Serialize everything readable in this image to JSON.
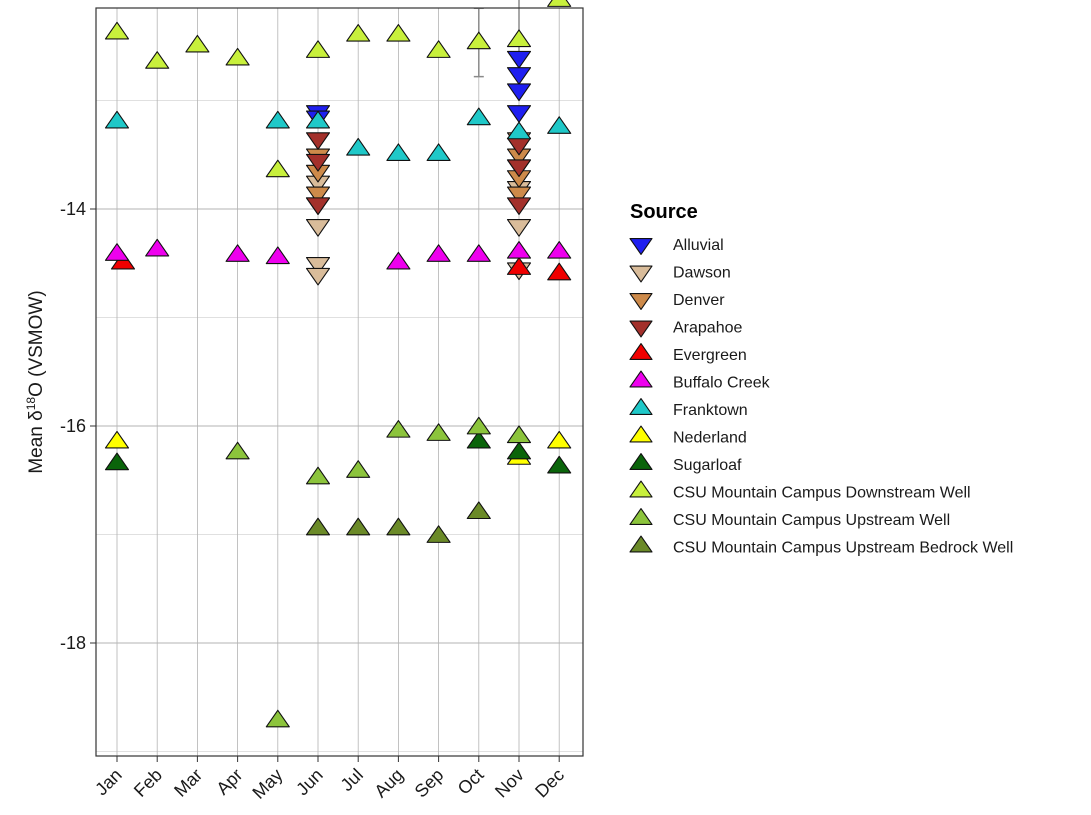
{
  "chart_data": {
    "type": "scatter",
    "title": "",
    "xlabel": "",
    "ylabel": {
      "prefix": "Mean δ",
      "sup": "18",
      "suffix": "O (VSMOW)"
    },
    "categories": [
      "Jan",
      "Feb",
      "Mar",
      "Apr",
      "May",
      "Jun",
      "Jul",
      "Aug",
      "Sep",
      "Oct",
      "Nov",
      "Dec"
    ],
    "ylim": [
      -19.1,
      -11.8
    ],
    "yticks": [
      -18,
      -16,
      -14
    ],
    "grid": true,
    "legend": {
      "title": "Source",
      "placement": "right"
    },
    "series": [
      {
        "name": "Alluvial",
        "marker": "triangle-down",
        "color": "#1f1ff0",
        "points": [
          [
            "Jun",
            -13.1
          ],
          [
            "Jun",
            -13.15
          ],
          [
            "Nov",
            -12.6
          ],
          [
            "Nov",
            -12.75
          ],
          [
            "Nov",
            -12.9
          ],
          [
            "Nov",
            -13.1
          ]
        ]
      },
      {
        "name": "Dawson",
        "marker": "triangle-down",
        "color": "#d9bc9a",
        "points": [
          [
            "Jun",
            -13.75
          ],
          [
            "Jun",
            -13.95
          ],
          [
            "Jun",
            -14.15
          ],
          [
            "Jun",
            -14.5
          ],
          [
            "Jun",
            -14.6
          ],
          [
            "Nov",
            -13.6
          ],
          [
            "Nov",
            -13.8
          ],
          [
            "Nov",
            -14.15
          ],
          [
            "Nov",
            -14.55
          ]
        ]
      },
      {
        "name": "Denver",
        "marker": "triangle-down",
        "color": "#cd8a4a",
        "points": [
          [
            "Jun",
            -13.5
          ],
          [
            "Jun",
            -13.65
          ],
          [
            "Jun",
            -13.85
          ],
          [
            "Nov",
            -13.35
          ],
          [
            "Nov",
            -13.5
          ],
          [
            "Nov",
            -13.7
          ],
          [
            "Nov",
            -13.85
          ]
        ]
      },
      {
        "name": "Arapahoe",
        "marker": "triangle-down",
        "color": "#a3302b",
        "points": [
          [
            "Jun",
            -13.35
          ],
          [
            "Jun",
            -13.55
          ],
          [
            "Jun",
            -13.95
          ],
          [
            "Nov",
            -13.4
          ],
          [
            "Nov",
            -13.6
          ],
          [
            "Nov",
            -13.95
          ]
        ]
      },
      {
        "name": "Evergreen",
        "marker": "triangle-up",
        "color": "#f00000",
        "points": [
          [
            "Jan",
            -14.5
          ],
          [
            "Nov",
            -14.55
          ],
          [
            "Dec",
            -14.6
          ]
        ]
      },
      {
        "name": "Buffalo Creek",
        "marker": "triangle-up",
        "color": "#ee00ee",
        "points": [
          [
            "Jan",
            -14.42
          ],
          [
            "Feb",
            -14.38
          ],
          [
            "Apr",
            -14.43
          ],
          [
            "May",
            -14.45
          ],
          [
            "Aug",
            -14.5
          ],
          [
            "Sep",
            -14.43
          ],
          [
            "Oct",
            -14.43
          ],
          [
            "Nov",
            -14.4
          ],
          [
            "Dec",
            -14.4
          ]
        ]
      },
      {
        "name": "Franktown",
        "marker": "triangle-up",
        "color": "#1fc8c8",
        "points": [
          [
            "Jan",
            -13.2
          ],
          [
            "May",
            -13.2
          ],
          [
            "Jun",
            -13.2
          ],
          [
            "Jul",
            -13.45
          ],
          [
            "Aug",
            -13.5
          ],
          [
            "Sep",
            -13.5
          ],
          [
            "Oct",
            -13.17
          ],
          [
            "Nov",
            -13.3
          ],
          [
            "Dec",
            -13.25
          ]
        ]
      },
      {
        "name": "Nederland",
        "marker": "triangle-up",
        "color": "#ffff00",
        "points": [
          [
            "Jan",
            -16.15
          ],
          [
            "Nov",
            -16.3
          ],
          [
            "Dec",
            -16.15
          ]
        ]
      },
      {
        "name": "Sugarloaf",
        "marker": "triangle-up",
        "color": "#0a640a",
        "points": [
          [
            "Jan",
            -16.35
          ],
          [
            "Oct",
            -16.15
          ],
          [
            "Nov",
            -16.25
          ],
          [
            "Dec",
            -16.38
          ]
        ]
      },
      {
        "name": "CSU Mountain Campus Downstream Well",
        "marker": "triangle-up",
        "color": "#c8f03c",
        "points": [
          [
            "Jan",
            -12.38
          ],
          [
            "Feb",
            -12.65
          ],
          [
            "Mar",
            -12.5
          ],
          [
            "Apr",
            -12.62
          ],
          [
            "May",
            -13.65
          ],
          [
            "Jun",
            -12.55
          ],
          [
            "Jul",
            -12.4
          ],
          [
            "Aug",
            -12.4
          ],
          [
            "Sep",
            -12.55
          ],
          [
            "Oct",
            -12.47
          ],
          [
            "Nov",
            -12.45
          ],
          [
            "Dec",
            -12.08
          ]
        ]
      },
      {
        "name": "CSU Mountain Campus Upstream Well",
        "marker": "triangle-up",
        "color": "#8cc43c",
        "points": [
          [
            "Apr",
            -16.25
          ],
          [
            "May",
            -18.72
          ],
          [
            "Jun",
            -16.48
          ],
          [
            "Jul",
            -16.42
          ],
          [
            "Aug",
            -16.05
          ],
          [
            "Sep",
            -16.08
          ],
          [
            "Oct",
            -16.02
          ],
          [
            "Nov",
            -16.1
          ]
        ]
      },
      {
        "name": "CSU Mountain Campus Upstream Bedrock Well",
        "marker": "triangle-up",
        "color": "#6b8a28",
        "points": [
          [
            "Jun",
            -16.95
          ],
          [
            "Jul",
            -16.95
          ],
          [
            "Aug",
            -16.95
          ],
          [
            "Sep",
            -17.02
          ],
          [
            "Oct",
            -16.8
          ]
        ]
      }
    ],
    "error_bars": [
      {
        "x": "Oct",
        "low": -12.78,
        "high": -12.15
      },
      {
        "x": "Nov",
        "low": -12.6,
        "high": -12.05
      }
    ]
  }
}
